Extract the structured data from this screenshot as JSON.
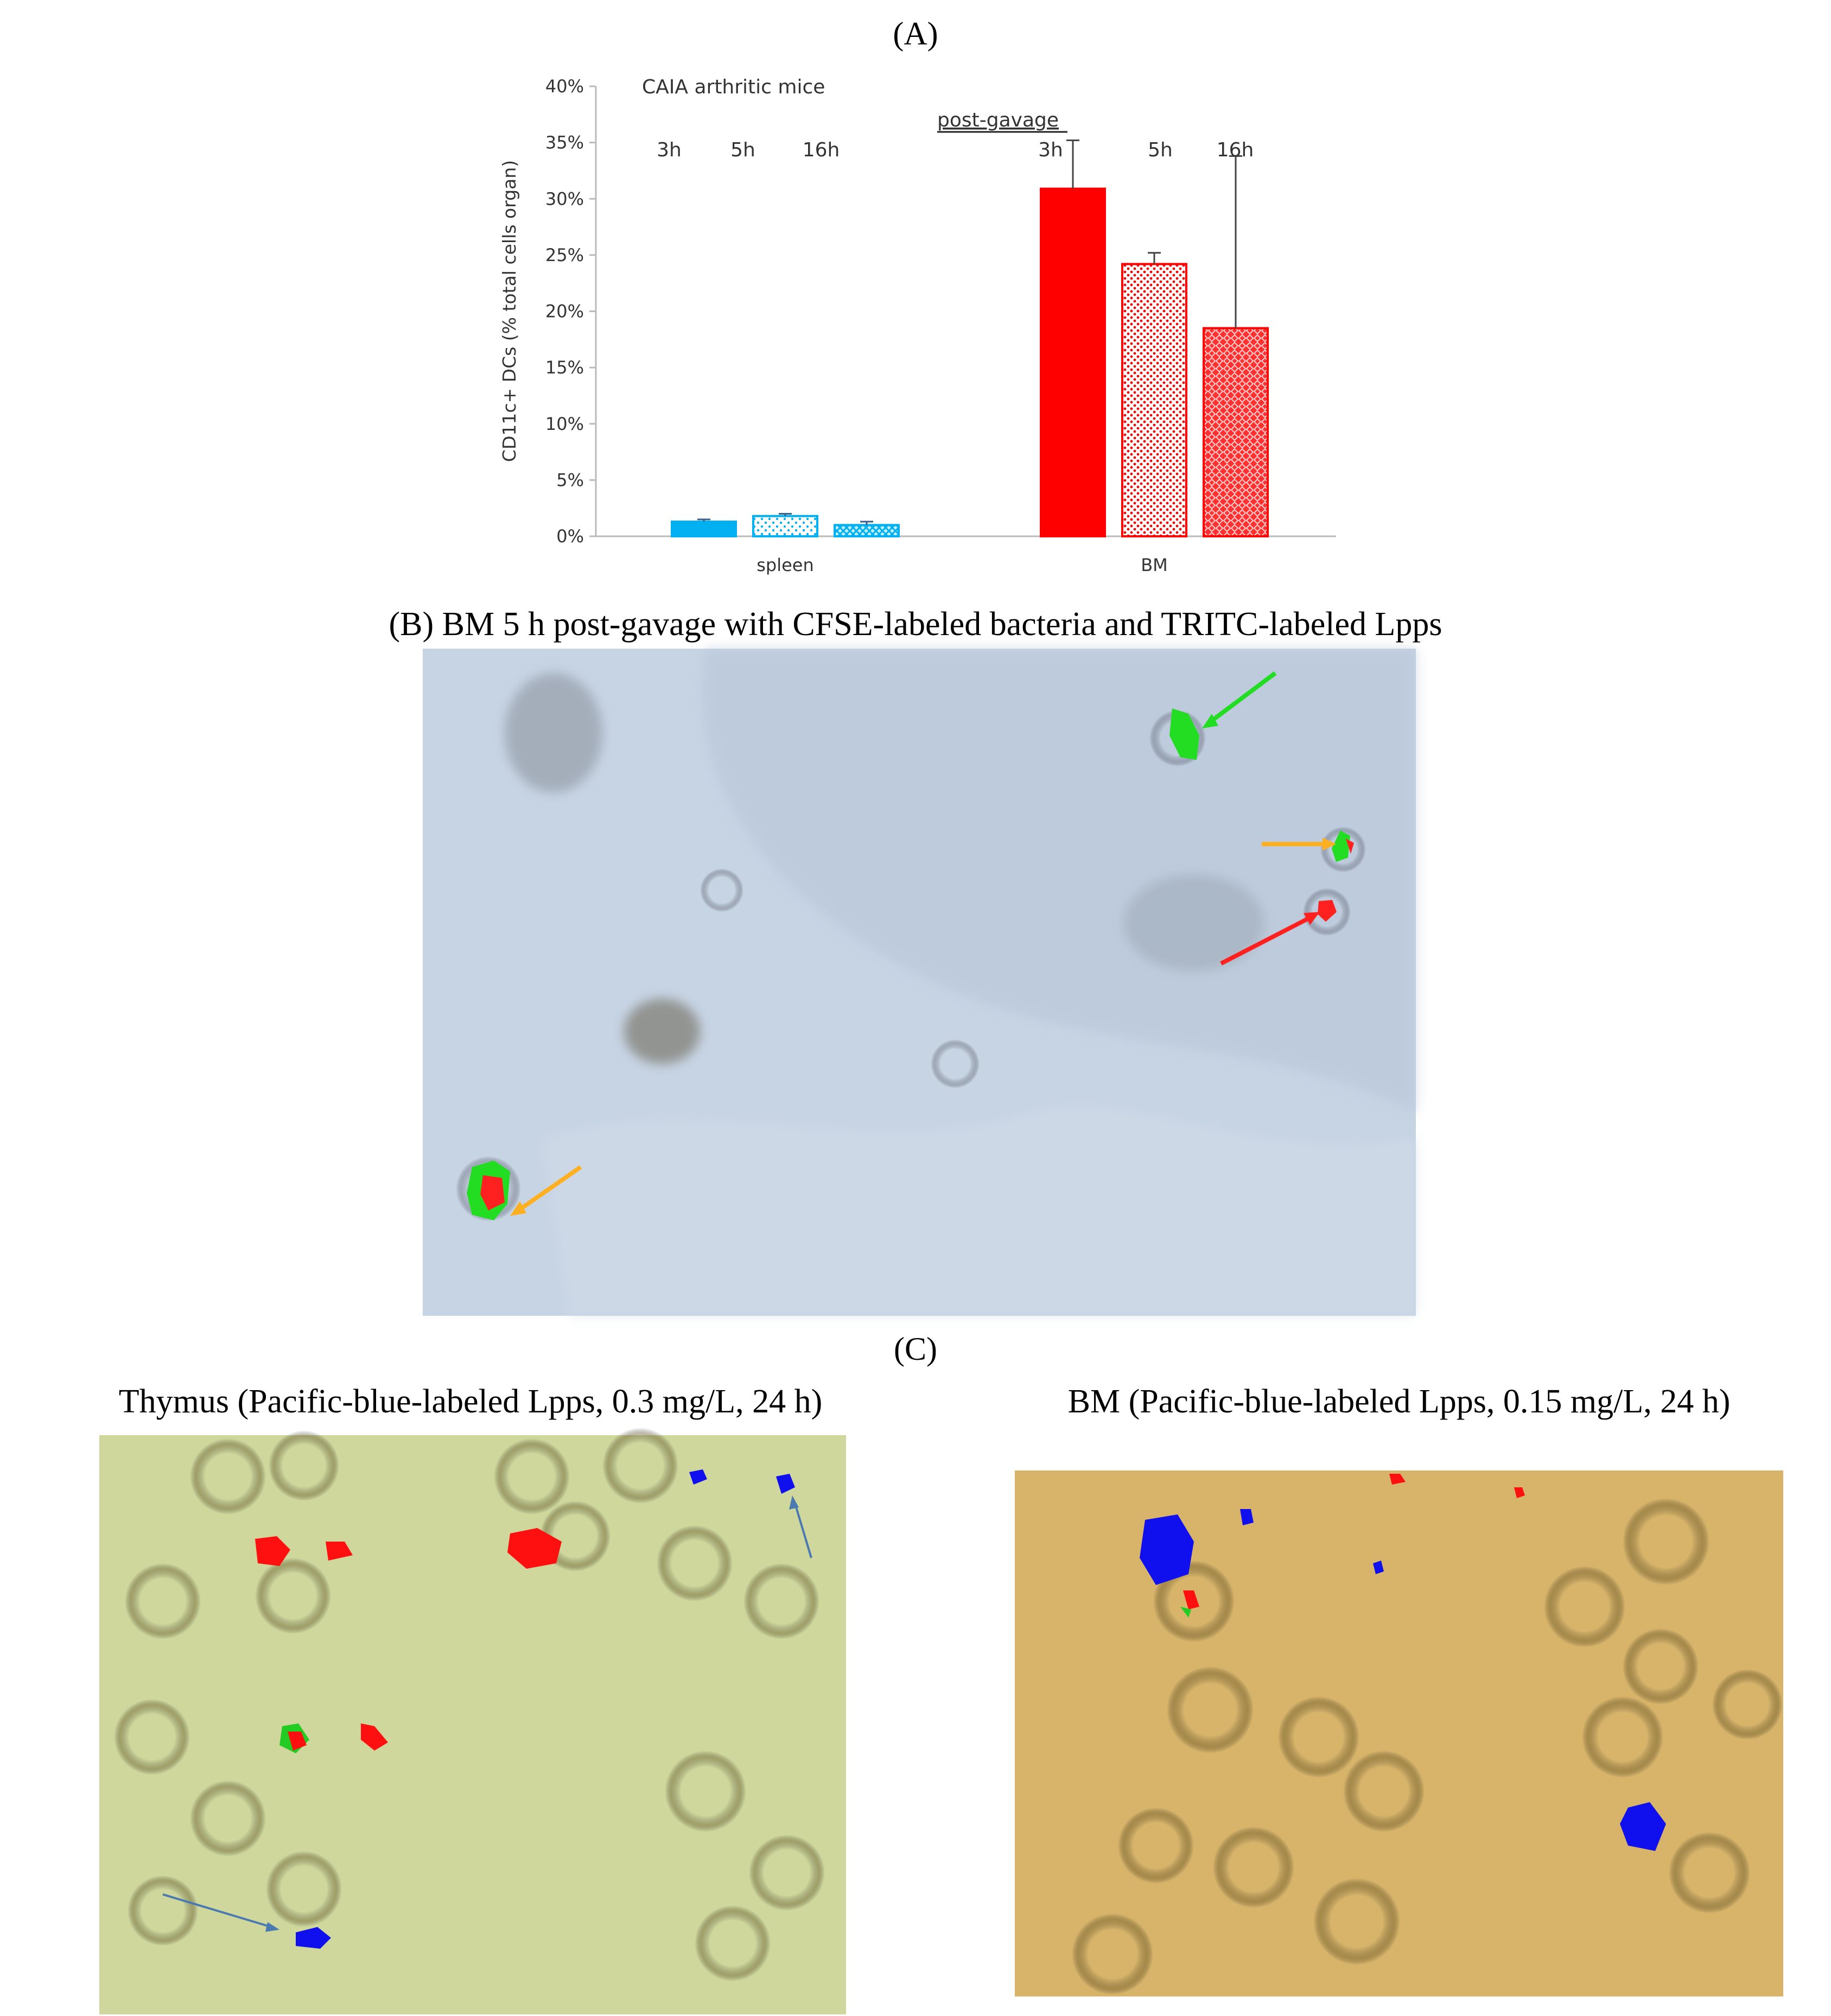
{
  "panels": {
    "a_label": "(A)",
    "b_title": "(B) BM 5 h post-gavage with CFSE-labeled bacteria and TRITC-labeled Lpps",
    "c_label": "(C)",
    "c_left_title": "Thymus (Pacific-blue-labeled Lpps, 0.3 mg/L, 24 h)",
    "c_right_title": "BM (Pacific-blue-labeled Lpps, 0.15 mg/L, 24 h)"
  },
  "chart_data": {
    "type": "bar",
    "y_label": "CD11c+ DCs (% total cells organ)",
    "annotations": [
      "CAIA arthritic mice",
      "post-gavage"
    ],
    "categories": [
      "spleen",
      "BM"
    ],
    "category_colors": [
      "#00b0f0",
      "#ff0000"
    ],
    "series": [
      {
        "name": "3h",
        "pattern": "solid",
        "values": [
          1.3,
          30.9
        ],
        "errors": [
          0.2,
          4.3
        ]
      },
      {
        "name": "5h",
        "pattern": "dots",
        "values": [
          1.8,
          24.2
        ],
        "errors": [
          0.2,
          1.0
        ]
      },
      {
        "name": "16h",
        "pattern": "checks",
        "values": [
          1.0,
          18.5
        ],
        "errors": [
          0.3,
          15.3
        ]
      }
    ],
    "ylim": [
      0,
      40
    ],
    "yticks": [
      {
        "value": 0,
        "label": "0%"
      },
      {
        "value": 5,
        "label": "5%"
      },
      {
        "value": 10,
        "label": "10%"
      },
      {
        "value": 15,
        "label": "15%"
      },
      {
        "value": 20,
        "label": "20%"
      },
      {
        "value": 25,
        "label": "25%"
      },
      {
        "value": 30,
        "label": "30%"
      },
      {
        "value": 35,
        "label": "35%"
      },
      {
        "value": 40,
        "label": "40%"
      }
    ]
  }
}
